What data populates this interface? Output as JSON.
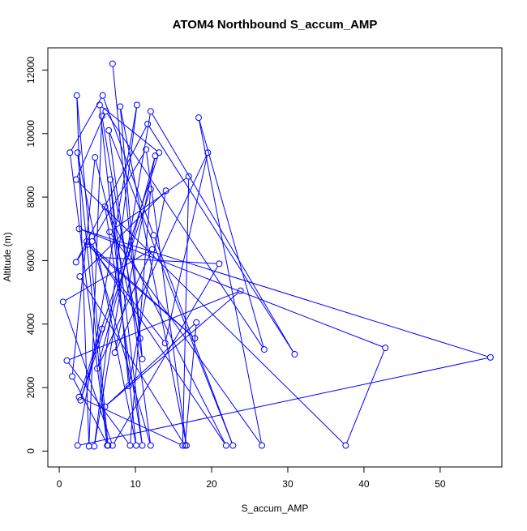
{
  "chart_data": {
    "type": "line",
    "title": "ATOM4 Northbound S_accum_AMP",
    "xlabel": "S_accum_AMP",
    "ylabel": "Altitude (m)",
    "xlim": [
      -1.5,
      58.1
    ],
    "ylim": [
      -500,
      12700
    ],
    "x_ticks": [
      0,
      10,
      20,
      30,
      40,
      50
    ],
    "y_ticks": [
      0,
      2000,
      4000,
      6000,
      8000,
      10000,
      12000
    ],
    "x_tick_labels": [
      "0",
      "10",
      "20",
      "30",
      "40",
      "50"
    ],
    "y_tick_labels": [
      "0",
      "2000",
      "4000",
      "6000",
      "8000",
      "10000",
      "12000"
    ],
    "series_color": "#0000ff",
    "marker": "open-circle",
    "grid": false,
    "points": [
      {
        "x": 7.0,
        "y": 12200
      },
      {
        "x": 10.6,
        "y": 3550
      },
      {
        "x": 4.7,
        "y": 9250
      },
      {
        "x": 1.7,
        "y": 2350
      },
      {
        "x": 6.4,
        "y": 175
      },
      {
        "x": 2.3,
        "y": 11200
      },
      {
        "x": 3.9,
        "y": 150
      },
      {
        "x": 5.6,
        "y": 10550
      },
      {
        "x": 10.9,
        "y": 2900
      },
      {
        "x": 8.0,
        "y": 10850
      },
      {
        "x": 16.7,
        "y": 175
      },
      {
        "x": 11.4,
        "y": 9500
      },
      {
        "x": 4.3,
        "y": 6600
      },
      {
        "x": 12.0,
        "y": 175
      },
      {
        "x": 6.5,
        "y": 10100
      },
      {
        "x": 22.8,
        "y": 175
      },
      {
        "x": 12.4,
        "y": 6800
      },
      {
        "x": 5.7,
        "y": 11200
      },
      {
        "x": 1.4,
        "y": 9400
      },
      {
        "x": 6.3,
        "y": 175
      },
      {
        "x": 2.4,
        "y": 9400
      },
      {
        "x": 10.1,
        "y": 175
      },
      {
        "x": 5.3,
        "y": 10900
      },
      {
        "x": 13.1,
        "y": 9400
      },
      {
        "x": 2.6,
        "y": 1700
      },
      {
        "x": 16.2,
        "y": 175
      },
      {
        "x": 17.0,
        "y": 8650
      },
      {
        "x": 6.6,
        "y": 6900
      },
      {
        "x": 26.6,
        "y": 175
      },
      {
        "x": 18.3,
        "y": 10500
      },
      {
        "x": 26.9,
        "y": 3200
      },
      {
        "x": 6.1,
        "y": 10700
      },
      {
        "x": 2.2,
        "y": 8550
      },
      {
        "x": 37.6,
        "y": 175
      },
      {
        "x": 42.8,
        "y": 3250
      },
      {
        "x": 2.6,
        "y": 7000
      },
      {
        "x": 56.6,
        "y": 2950
      },
      {
        "x": 2.4,
        "y": 175
      },
      {
        "x": 10.2,
        "y": 10900
      },
      {
        "x": 4.6,
        "y": 150
      },
      {
        "x": 12.0,
        "y": 10700
      },
      {
        "x": 30.9,
        "y": 3050
      },
      {
        "x": 11.6,
        "y": 10300
      },
      {
        "x": 2.2,
        "y": 5950
      },
      {
        "x": 3.7,
        "y": 6500
      },
      {
        "x": 17.8,
        "y": 3550
      },
      {
        "x": 3.6,
        "y": 6600
      },
      {
        "x": 13.9,
        "y": 3400
      },
      {
        "x": 19.5,
        "y": 9400
      },
      {
        "x": 7.3,
        "y": 3100
      },
      {
        "x": 12.6,
        "y": 9300
      },
      {
        "x": 5.0,
        "y": 2600
      },
      {
        "x": 12.2,
        "y": 6350
      },
      {
        "x": 0.5,
        "y": 4700
      },
      {
        "x": 7.0,
        "y": 175
      },
      {
        "x": 21.0,
        "y": 5900
      },
      {
        "x": 5.2,
        "y": 6100
      },
      {
        "x": 21.9,
        "y": 175
      },
      {
        "x": 6.0,
        "y": 7700
      },
      {
        "x": 10.9,
        "y": 175
      },
      {
        "x": 6.7,
        "y": 8550
      },
      {
        "x": 9.1,
        "y": 2050
      },
      {
        "x": 14.0,
        "y": 8200
      },
      {
        "x": 2.7,
        "y": 5500
      },
      {
        "x": 16.5,
        "y": 175
      },
      {
        "x": 18.0,
        "y": 4050
      },
      {
        "x": 6.0,
        "y": 1400
      },
      {
        "x": 23.8,
        "y": 5050
      },
      {
        "x": 1.0,
        "y": 2850
      },
      {
        "x": 9.3,
        "y": 175
      },
      {
        "x": 12.0,
        "y": 8250
      },
      {
        "x": 2.8,
        "y": 1600
      },
      {
        "x": 5.6,
        "y": 3850
      }
    ]
  }
}
